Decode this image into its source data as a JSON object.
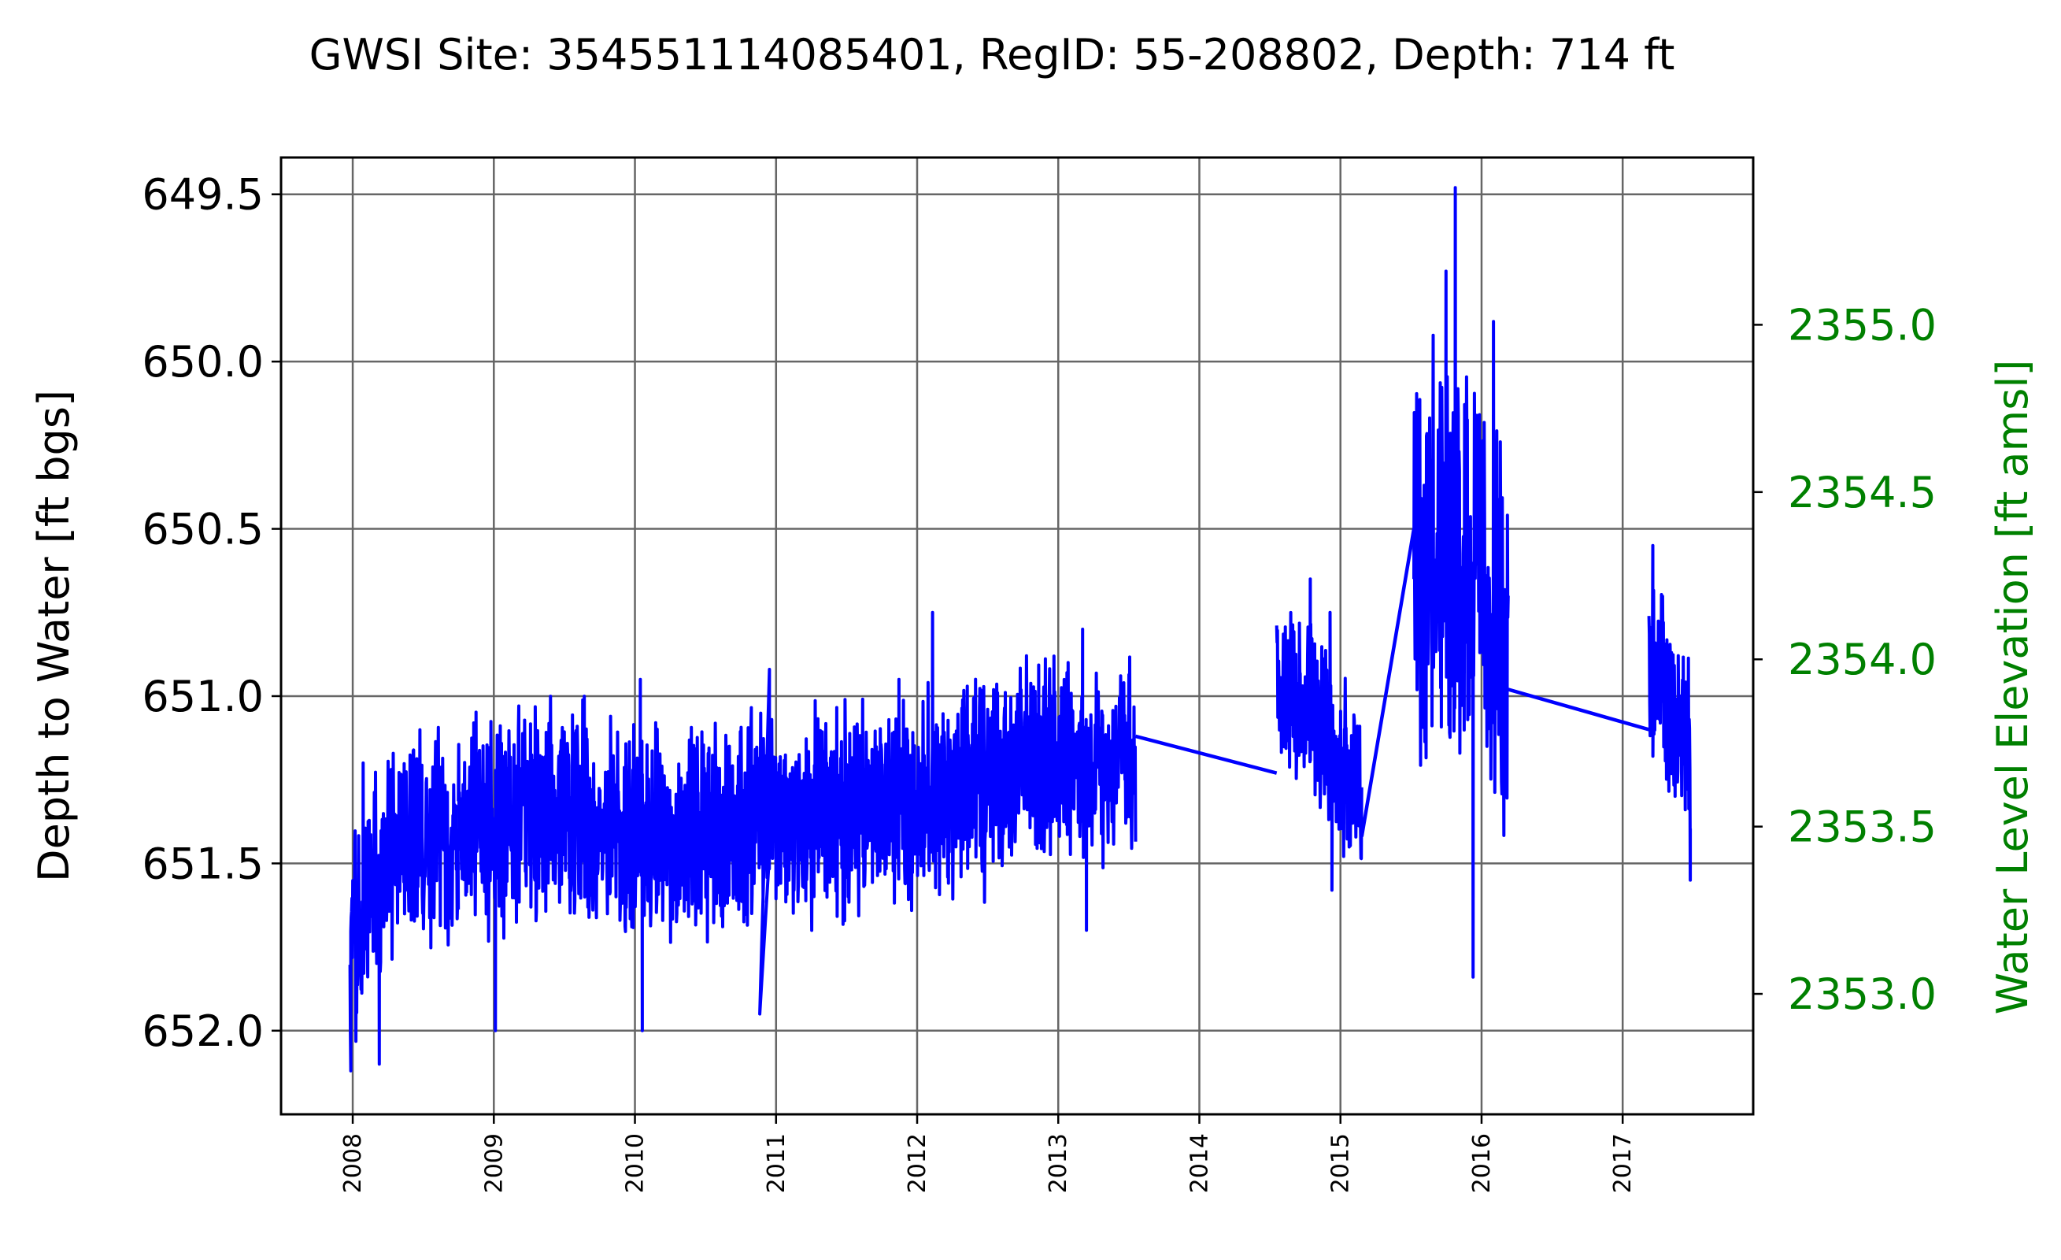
{
  "chart_data": {
    "type": "line",
    "title": "GWSI Site: 354551114085401, RegID: 55-208802, Depth: 714 ft",
    "ylabel": "Depth to Water [ft bgs]",
    "y2label": "Water Level Elevation [ft amsl]",
    "ylim": [
      652.25,
      649.39
    ],
    "y2lim": [
      2352.64,
      2355.5
    ],
    "y_inverted": true,
    "grid": true,
    "x_tick_labels": [
      "2008",
      "2009",
      "2010",
      "2011",
      "2012",
      "2013",
      "2014",
      "2015",
      "2016",
      "2017"
    ],
    "y_tick_labels": [
      "649.5",
      "650.0",
      "650.5",
      "651.0",
      "651.5",
      "652.0"
    ],
    "y2_tick_labels": [
      "2353.0",
      "2353.5",
      "2354.0",
      "2354.5",
      "2355.0"
    ],
    "colors": {
      "series": "#0000ff",
      "secondary_axis": "#008000",
      "grid": "#666666"
    },
    "series": [
      {
        "segments": [
          {
            "start": "2007-12-25",
            "end": "2008-10-01",
            "center": [
              651.75,
              651.4,
              651.45
            ],
            "spread": 0.36,
            "extremes": [
              {
                "x": "2007-12-27",
                "y": 652.12
              },
              {
                "x": "2008-01-28",
                "y": 651.2
              },
              {
                "x": "2008-03-10",
                "y": 652.1
              }
            ]
          },
          {
            "start": "2008-10-01",
            "end": "2010-06-01",
            "center": [
              651.4,
              651.35,
              651.45
            ],
            "spread": 0.38,
            "extremes": [
              {
                "x": "2008-11-10",
                "y": 651.08
              },
              {
                "x": "2009-01-05",
                "y": 652.0
              },
              {
                "x": "2010-01-15",
                "y": 650.95
              },
              {
                "x": "2010-01-20",
                "y": 652.0
              }
            ]
          },
          {
            "start": "2010-06-01",
            "end": "2012-09-01",
            "center": [
              651.4,
              651.35,
              651.25
            ],
            "spread": 0.36,
            "extremes": [
              {
                "x": "2010-12-15",
                "y": 650.92
              },
              {
                "x": "2010-11-20",
                "y": 651.95
              },
              {
                "x": "2011-11-15",
                "y": 650.95
              },
              {
                "x": "2012-02-10",
                "y": 650.75
              }
            ]
          },
          {
            "start": "2012-09-01",
            "end": "2013-07-20",
            "center": [
              651.2,
              651.2
            ],
            "spread": 0.34,
            "extremes": [
              {
                "x": "2013-03-05",
                "y": 650.8
              },
              {
                "x": "2013-03-15",
                "y": 651.7
              }
            ]
          },
          {
            "start": "2014-07-20",
            "end": "2015-02-25",
            "center": [
              650.9,
              651.3
            ],
            "spread": 0.3,
            "extremes": [
              {
                "x": "2014-10-15",
                "y": 650.65
              },
              {
                "x": "2014-12-05",
                "y": 650.75
              },
              {
                "x": "2014-12-10",
                "y": 651.58
              }
            ]
          },
          {
            "start": "2015-07-10",
            "end": "2016-03-10",
            "center": [
              650.6,
              650.55,
              650.9
            ],
            "spread": 0.7,
            "extremes": [
              {
                "x": "2015-10-01",
                "y": 649.73
              },
              {
                "x": "2015-10-25",
                "y": 649.48
              },
              {
                "x": "2015-12-10",
                "y": 651.84
              },
              {
                "x": "2016-02-01",
                "y": 649.88
              }
            ]
          },
          {
            "start": "2017-03-10",
            "end": "2017-06-25",
            "center": [
              650.9,
              651.15
            ],
            "spread": 0.34,
            "extremes": [
              {
                "x": "2017-03-20",
                "y": 650.55
              },
              {
                "x": "2017-06-25",
                "y": 651.55
              }
            ]
          }
        ],
        "connectors": [
          {
            "from": {
              "x": "2013-07-20",
              "y": 651.12
            },
            "to": {
              "x": "2014-07-20",
              "y": 651.23
            }
          },
          {
            "from": {
              "x": "2015-02-25",
              "y": 651.42
            },
            "to": {
              "x": "2015-07-10",
              "y": 650.5
            }
          },
          {
            "from": {
              "x": "2016-03-10",
              "y": 650.98
            },
            "to": {
              "x": "2017-03-10",
              "y": 651.1
            }
          }
        ]
      }
    ]
  }
}
